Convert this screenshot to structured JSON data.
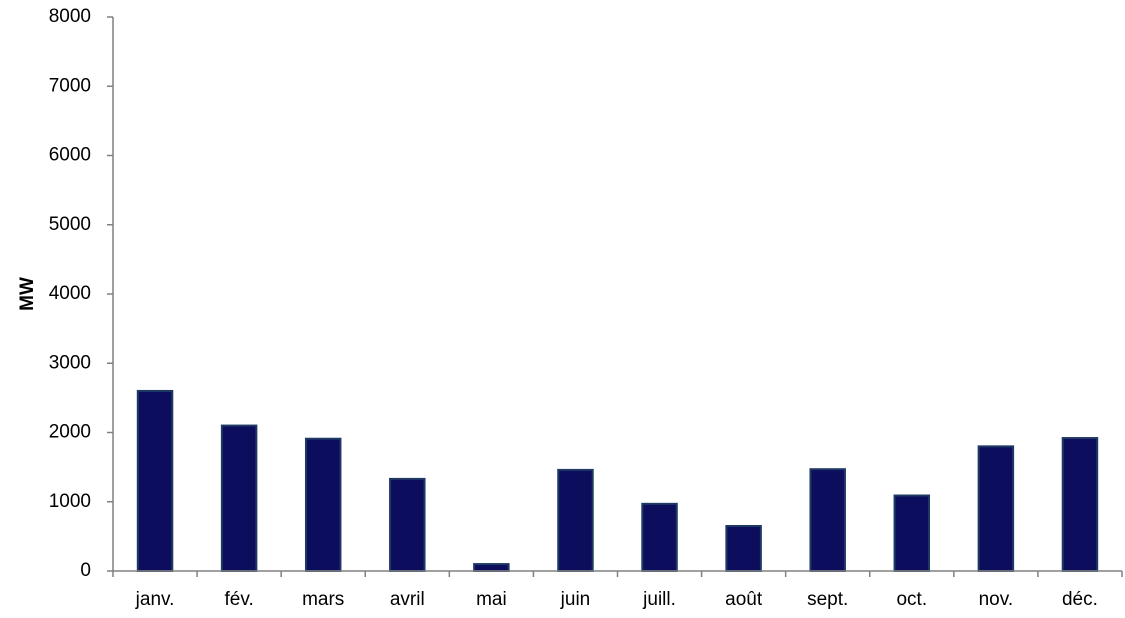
{
  "chart_data": {
    "type": "bar",
    "title": "",
    "xlabel": "",
    "ylabel": "MW",
    "categories": [
      "janv.",
      "fév.",
      "mars",
      "avril",
      "mai",
      "juin",
      "juill.",
      "août",
      "sept.",
      "oct.",
      "nov.",
      "déc."
    ],
    "series": [
      {
        "values": [
          2600,
          2100,
          1910,
          1330,
          100,
          1460,
          970,
          650,
          1470,
          1090,
          1800,
          1920
        ]
      }
    ],
    "ylim": [
      0,
      8000
    ],
    "yticks": [
      0,
      1000,
      2000,
      3000,
      4000,
      5000,
      6000,
      7000,
      8000
    ],
    "grid": false,
    "legend": "none",
    "colors": {
      "bar_fill": "#0D0D5E",
      "bar_stroke": "#1F3864",
      "axis": "#808080",
      "text": "#000000"
    }
  }
}
